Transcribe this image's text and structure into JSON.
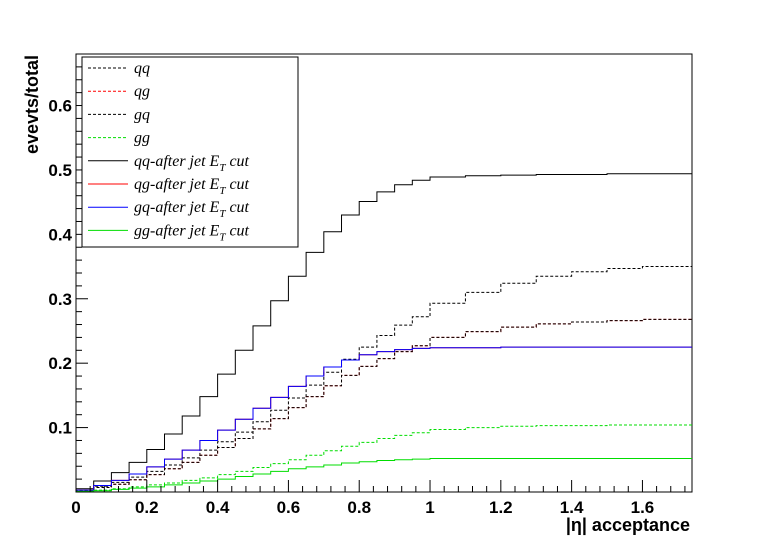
{
  "chart_data": {
    "type": "line",
    "step": true,
    "xlabel": "|η|  acceptance",
    "ylabel": "evevts/total",
    "xlim": [
      0,
      1.74
    ],
    "ylim": [
      0,
      0.68
    ],
    "x_ticks": [
      "0",
      "0.2",
      "0.4",
      "0.6",
      "0.8",
      "1",
      "1.2",
      "1.4",
      "1.6"
    ],
    "x_tick_values": [
      0,
      0.2,
      0.4,
      0.6,
      0.8,
      1.0,
      1.2,
      1.4,
      1.6
    ],
    "y_ticks": [
      "0.1",
      "0.2",
      "0.3",
      "0.4",
      "0.5",
      "0.6"
    ],
    "y_tick_values": [
      0.1,
      0.2,
      0.3,
      0.4,
      0.5,
      0.6
    ],
    "legend_position": "top-left",
    "x": [
      0.05,
      0.1,
      0.15,
      0.2,
      0.25,
      0.3,
      0.35,
      0.4,
      0.45,
      0.5,
      0.55,
      0.6,
      0.65,
      0.7,
      0.75,
      0.8,
      0.85,
      0.9,
      0.95,
      1.0,
      1.1,
      1.2,
      1.3,
      1.4,
      1.5,
      1.6,
      1.7,
      1.74
    ],
    "series": [
      {
        "name": "qq",
        "label": "qq",
        "color": "#000000",
        "style": "dashed",
        "values": [
          0.003,
          0.009,
          0.015,
          0.023,
          0.032,
          0.042,
          0.053,
          0.065,
          0.078,
          0.093,
          0.109,
          0.127,
          0.146,
          0.166,
          0.186,
          0.206,
          0.225,
          0.243,
          0.259,
          0.272,
          0.293,
          0.31,
          0.324,
          0.335,
          0.342,
          0.347,
          0.35,
          0.35
        ]
      },
      {
        "name": "qg",
        "label": "qg",
        "color": "#ff0000",
        "style": "dashed",
        "values": [
          0.002,
          0.007,
          0.012,
          0.019,
          0.027,
          0.036,
          0.046,
          0.057,
          0.069,
          0.083,
          0.098,
          0.114,
          0.131,
          0.148,
          0.165,
          0.181,
          0.195,
          0.207,
          0.218,
          0.227,
          0.24,
          0.249,
          0.256,
          0.261,
          0.264,
          0.266,
          0.268,
          0.268
        ]
      },
      {
        "name": "gq",
        "label": "gq",
        "color": "#000000",
        "style": "dashed",
        "values": [
          0.002,
          0.007,
          0.012,
          0.019,
          0.027,
          0.036,
          0.046,
          0.057,
          0.069,
          0.083,
          0.098,
          0.114,
          0.131,
          0.148,
          0.165,
          0.181,
          0.195,
          0.207,
          0.218,
          0.227,
          0.24,
          0.249,
          0.256,
          0.261,
          0.264,
          0.266,
          0.268,
          0.268
        ]
      },
      {
        "name": "gg",
        "label": "gg",
        "color": "#00dd00",
        "style": "dashed",
        "values": [
          0.001,
          0.003,
          0.005,
          0.008,
          0.011,
          0.014,
          0.018,
          0.022,
          0.027,
          0.032,
          0.038,
          0.044,
          0.05,
          0.057,
          0.064,
          0.071,
          0.077,
          0.083,
          0.088,
          0.092,
          0.097,
          0.1,
          0.102,
          0.103,
          0.103,
          0.104,
          0.104,
          0.104
        ]
      },
      {
        "name": "qq-after jet ET cut",
        "label": "qq-after jet E",
        "sub": "T",
        "tail": " cut",
        "color": "#000000",
        "style": "solid",
        "values": [
          0.005,
          0.017,
          0.03,
          0.046,
          0.066,
          0.09,
          0.118,
          0.148,
          0.183,
          0.22,
          0.258,
          0.297,
          0.335,
          0.372,
          0.404,
          0.43,
          0.451,
          0.466,
          0.477,
          0.484,
          0.489,
          0.491,
          0.492,
          0.493,
          0.493,
          0.494,
          0.494,
          0.494
        ]
      },
      {
        "name": "qg-after jet ET cut",
        "label": "qg-after jet E",
        "sub": "T",
        "tail": " cut",
        "color": "#ff0000",
        "style": "solid",
        "values": [
          0.003,
          0.01,
          0.018,
          0.028,
          0.039,
          0.051,
          0.065,
          0.08,
          0.096,
          0.113,
          0.13,
          0.147,
          0.164,
          0.18,
          0.194,
          0.205,
          0.213,
          0.218,
          0.221,
          0.223,
          0.224,
          0.224,
          0.225,
          0.225,
          0.225,
          0.225,
          0.225,
          0.225
        ]
      },
      {
        "name": "gq-after jet ET cut",
        "label": "gq-after jet E",
        "sub": "T",
        "tail": " cut",
        "color": "#0000ff",
        "style": "solid",
        "values": [
          0.003,
          0.01,
          0.018,
          0.028,
          0.039,
          0.051,
          0.065,
          0.08,
          0.096,
          0.113,
          0.13,
          0.147,
          0.164,
          0.18,
          0.194,
          0.205,
          0.213,
          0.218,
          0.221,
          0.223,
          0.224,
          0.224,
          0.225,
          0.225,
          0.225,
          0.225,
          0.225,
          0.225
        ]
      },
      {
        "name": "gg-after jet ET cut",
        "label": "gg-after jet E",
        "sub": "T",
        "tail": " cut",
        "color": "#00dd00",
        "style": "solid",
        "values": [
          0.001,
          0.002,
          0.004,
          0.006,
          0.008,
          0.011,
          0.014,
          0.017,
          0.02,
          0.024,
          0.028,
          0.032,
          0.036,
          0.039,
          0.042,
          0.045,
          0.047,
          0.049,
          0.05,
          0.051,
          0.052,
          0.052,
          0.052,
          0.052,
          0.052,
          0.052,
          0.052,
          0.052
        ]
      }
    ]
  }
}
